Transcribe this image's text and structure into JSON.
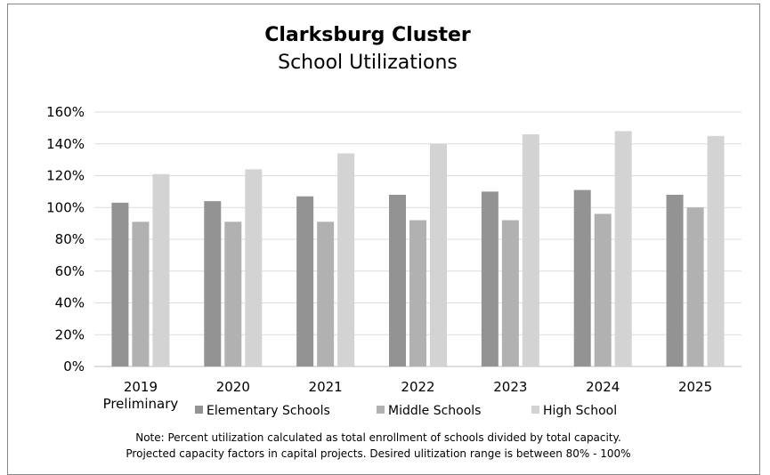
{
  "chart_data": {
    "type": "bar",
    "title": "Clarksburg Cluster",
    "subtitle": "School Utilizations",
    "categories": [
      "2019",
      "2020",
      "2021",
      "2022",
      "2023",
      "2024",
      "2025"
    ],
    "category_sublabels": [
      "Preliminary",
      "",
      "",
      "",
      "",
      "",
      ""
    ],
    "series": [
      {
        "name": "Elementary Schools",
        "color": "#939393",
        "values": [
          103,
          104,
          107,
          108,
          110,
          111,
          108
        ]
      },
      {
        "name": "Middle Schools",
        "color": "#b1b1b1",
        "values": [
          91,
          91,
          91,
          92,
          92,
          96,
          100
        ]
      },
      {
        "name": "High School",
        "color": "#d3d3d3",
        "values": [
          121,
          124,
          134,
          140,
          146,
          148,
          145
        ]
      }
    ],
    "ylim": [
      0,
      160
    ],
    "yticks": [
      "0%",
      "20%",
      "40%",
      "60%",
      "80%",
      "100%",
      "120%",
      "140%",
      "160%"
    ],
    "ytick_values": [
      0,
      20,
      40,
      60,
      80,
      100,
      120,
      140,
      160
    ],
    "grid": true,
    "legend_position": "bottom",
    "note_lines": [
      "Note:  Percent utilization calculated as total enrollment of schools divided by total capacity.",
      "Projected capacity factors in capital projects. Desired ulitization range is between 80% - 100%"
    ]
  }
}
